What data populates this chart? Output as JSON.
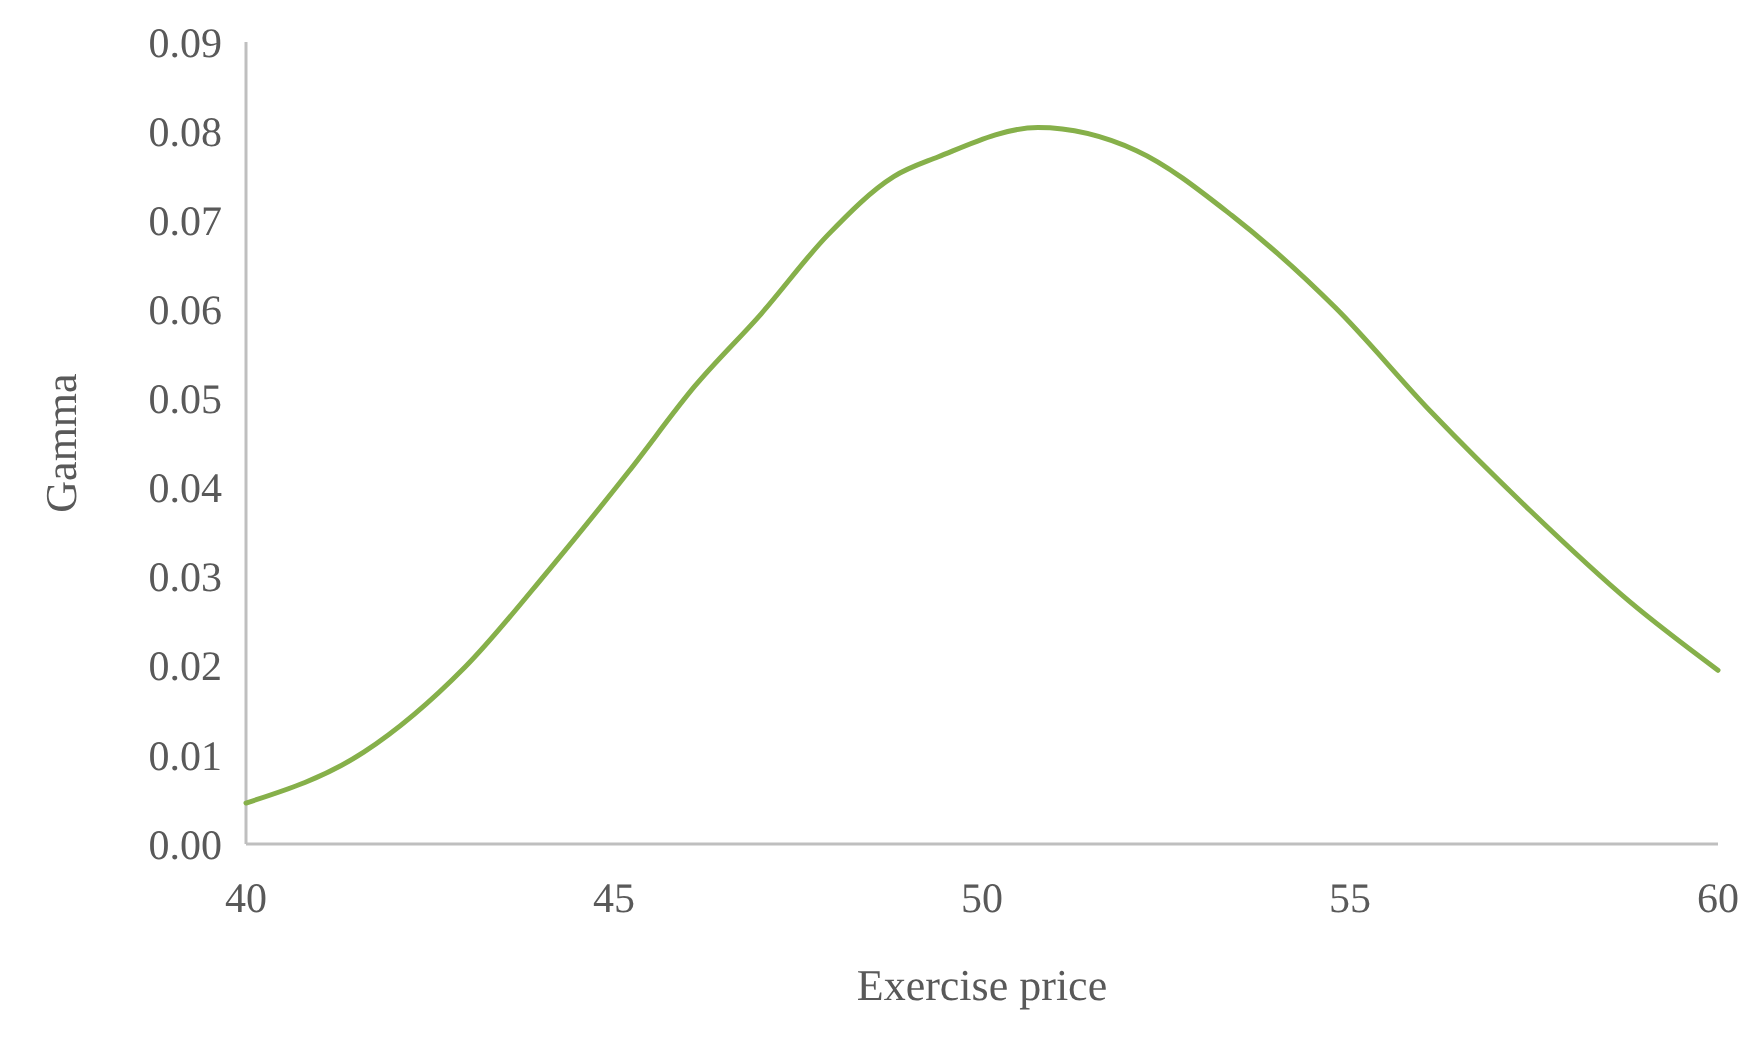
{
  "chart_data": {
    "type": "line",
    "xlabel": "Exercise price",
    "ylabel": "Gamma",
    "xlim": [
      40,
      60
    ],
    "xticks": [
      40,
      45,
      50,
      55,
      60
    ],
    "ylim": [
      0,
      0.09
    ],
    "yticks": [
      {
        "value": 0,
        "label": "0.00"
      },
      {
        "value": 0.01,
        "label": "0.01"
      },
      {
        "value": 0.02,
        "label": "0.02"
      },
      {
        "value": 0.03,
        "label": "0.03"
      },
      {
        "value": 0.04,
        "label": "0.04"
      },
      {
        "value": 0.05,
        "label": "0.05"
      },
      {
        "value": 0.06,
        "label": "0.06"
      },
      {
        "value": 0.07,
        "label": "0.07"
      },
      {
        "value": 0.08,
        "label": "0.08"
      },
      {
        "value": 0.09,
        "label": "0.09"
      }
    ],
    "grid": false,
    "marker": "none",
    "line_style": "solid",
    "series": [
      {
        "color": "#86b04a",
        "x": [
          40,
          41.6,
          42.97,
          44.12,
          45.2,
          46.1,
          47,
          47.9,
          48.8,
          49.4,
          50.76,
          52.1,
          53.4,
          54.8,
          56.1,
          57.45,
          58.8,
          60
        ],
        "values": [
          0.0046,
          0.0103,
          0.0198,
          0.0308,
          0.0418,
          0.0514,
          0.0595,
          0.0683,
          0.0749,
          0.0771,
          0.0804,
          0.0778,
          0.0705,
          0.0602,
          0.0485,
          0.0374,
          0.0272,
          0.0195
        ]
      }
    ]
  }
}
